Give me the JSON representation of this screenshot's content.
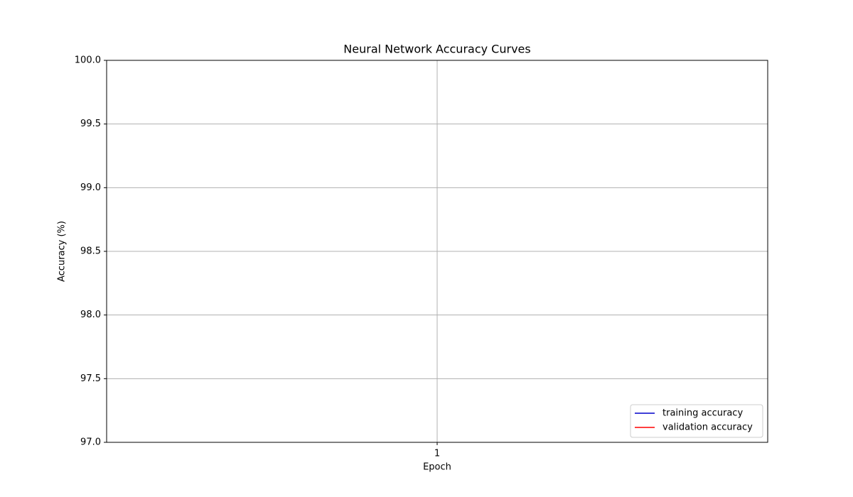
{
  "chart_data": {
    "type": "line",
    "title": "Neural Network Accuracy Curves",
    "xlabel": "Epoch",
    "ylabel": "Accuracy (%)",
    "x": [
      1
    ],
    "series": [
      {
        "name": "training accuracy",
        "color": "#0000cc",
        "values": [
          null
        ]
      },
      {
        "name": "validation accuracy",
        "color": "#ff0000",
        "values": [
          null
        ]
      }
    ],
    "xlim": [
      0.95,
      1.05
    ],
    "xticks": [
      1
    ],
    "ylim": [
      97,
      100
    ],
    "yticks": [
      {
        "value": 97,
        "label": "97.0"
      },
      {
        "value": 97.5,
        "label": "97.5"
      },
      {
        "value": 98,
        "label": "98.0"
      },
      {
        "value": 98.5,
        "label": "98.5"
      },
      {
        "value": 99,
        "label": "99.0"
      },
      {
        "value": 99.5,
        "label": "99.5"
      },
      {
        "value": 100,
        "label": "100.0"
      }
    ],
    "grid": true,
    "legend": "lower right"
  }
}
